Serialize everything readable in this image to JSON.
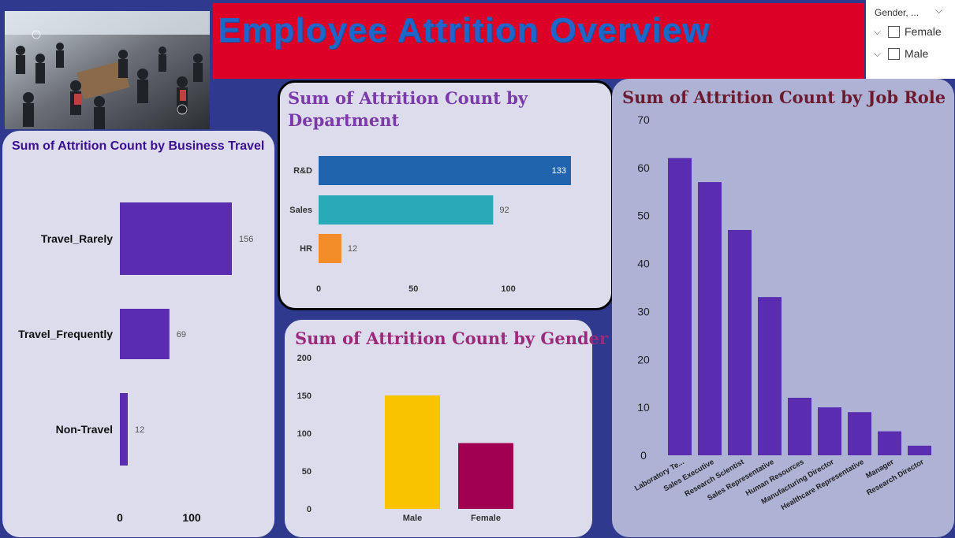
{
  "header": {
    "title": "Employee Attrition Overview"
  },
  "slicer": {
    "title": "Gender, ...",
    "options": [
      "Female",
      "Male"
    ]
  },
  "colors": {
    "background": "#2f3a8f",
    "banner": "#dc0027",
    "title_text": "#1e66c8",
    "purple_bar": "#5a2db0",
    "rd": "#1f64ad",
    "sales": "#2aa9b8",
    "hr": "#f28c28",
    "male": "#f9c300",
    "female": "#a0004f"
  },
  "chart_data": [
    {
      "type": "bar",
      "orientation": "horizontal",
      "title": "Sum of Attrition Count by Business Travel",
      "categories": [
        "Travel_Rarely",
        "Travel_Frequently",
        "Non-Travel"
      ],
      "values": [
        156,
        69,
        12
      ],
      "xticks": [
        "0",
        "100"
      ],
      "xlim": [
        0,
        160
      ]
    },
    {
      "type": "bar",
      "orientation": "horizontal",
      "title": "Sum of Attrition Count by Department",
      "title_lines": [
        "Sum of Attrition Count by",
        "Department"
      ],
      "categories": [
        "R&D",
        "Sales",
        "HR"
      ],
      "values": [
        133,
        92,
        12
      ],
      "xticks": [
        "0",
        "50",
        "100"
      ],
      "xlim": [
        0,
        135
      ]
    },
    {
      "type": "bar",
      "orientation": "vertical",
      "title": "Sum of Attrition Count by Gender",
      "categories": [
        "Male",
        "Female"
      ],
      "values": [
        150,
        87
      ],
      "yticks": [
        "200",
        "150",
        "100",
        "50",
        "0"
      ],
      "ylim": [
        0,
        200
      ]
    },
    {
      "type": "bar",
      "orientation": "vertical",
      "title": "Sum of Attrition Count by Job Role",
      "categories": [
        "Laboratory Te...",
        "Sales Executive",
        "Research Scientist",
        "Sales Representative",
        "Human Resources",
        "Manufacturing Director",
        "Healthcare Representative",
        "Manager",
        "Research Director"
      ],
      "values": [
        62,
        57,
        47,
        33,
        12,
        10,
        9,
        5,
        2
      ],
      "yticks": [
        "70",
        "60",
        "50",
        "40",
        "30",
        "20",
        "10",
        "0"
      ],
      "ylim": [
        0,
        70
      ]
    }
  ]
}
